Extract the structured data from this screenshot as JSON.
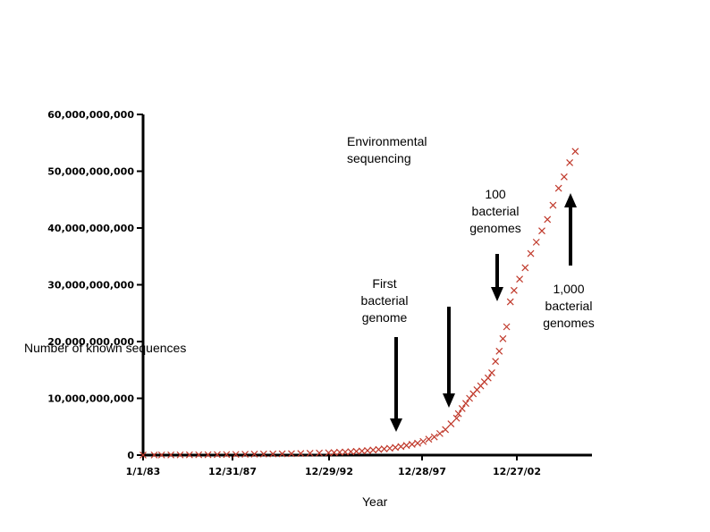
{
  "chart_data": {
    "type": "scatter",
    "xlabel": "Year",
    "ylabel": "Number of known sequences",
    "y_ticks": [
      "0",
      "10,000,000,000",
      "20,000,000,000",
      "30,000,000,000",
      "40,000,000,000",
      "50,000,000,000",
      "60,000,000,000"
    ],
    "x_ticks": [
      "1/1/83",
      "12/31/87",
      "12/29/92",
      "12/28/97",
      "12/27/02"
    ],
    "ylim": [
      0,
      60000000000
    ],
    "xlim": [
      1983.0,
      2007.2
    ],
    "marker": "x",
    "marker_color": "#c0392b",
    "annotations": [
      {
        "text": "Environmental\nsequencing"
      },
      {
        "text": "100\nbacterial\ngenomes"
      },
      {
        "text": "First\nbacterial\ngenome"
      },
      {
        "text": "1,000\nbacterial\ngenomes"
      }
    ],
    "series": [
      {
        "x": [
          1983.0,
          1983.6,
          1984.0,
          1984.5,
          1985.0,
          1985.5,
          1986.0,
          1986.5,
          1987.0,
          1987.5,
          1988.0,
          1988.5,
          1989.0,
          1989.5,
          1990.0,
          1990.5,
          1991.0,
          1991.5,
          1992.0,
          1992.5,
          1993.0,
          1993.3,
          1993.6,
          1993.9,
          1994.2,
          1994.5,
          1994.8,
          1995.1,
          1995.4,
          1995.7,
          1996.0,
          1996.3,
          1996.6,
          1996.9,
          1997.2,
          1997.5,
          1997.8,
          1998.1,
          1998.4,
          1998.7,
          1999.0,
          1999.3,
          1999.6,
          1999.9,
          2000.0,
          2000.2,
          2000.4,
          2000.6,
          2000.8,
          2001.0,
          2001.2,
          2001.4,
          2001.6,
          2001.8,
          2002.0,
          2002.2,
          2002.4,
          2002.6,
          2002.8,
          2003.0,
          2003.3,
          2003.6,
          2003.9,
          2004.2,
          2004.5,
          2004.8,
          2005.1,
          2005.4,
          2005.7,
          2006.0,
          2006.3
        ],
        "y": [
          10000000.0,
          20000000.0,
          20000000.0,
          30000000.0,
          40000000.0,
          50000000.0,
          60000000.0,
          70000000.0,
          90000000.0,
          100000000.0,
          120000000.0,
          140000000.0,
          160000000.0,
          180000000.0,
          200000000.0,
          220000000.0,
          250000000.0,
          280000000.0,
          320000000.0,
          360000000.0,
          400000000.0,
          450000000.0,
          500000000.0,
          550000000.0,
          600000000.0,
          660000000.0,
          720000000.0,
          800000000.0,
          900000000.0,
          1000000000.0,
          1100000000.0,
          1200000000.0,
          1350000000.0,
          1500000000.0,
          1700000000.0,
          1900000000.0,
          2100000000.0,
          2400000000.0,
          2800000000.0,
          3200000000.0,
          3800000000.0,
          4500000000.0,
          5500000000.0,
          6500000000.0,
          7300000000.0,
          8200000000.0,
          9100000000.0,
          10000000000.0,
          10800000000.0,
          11500000000.0,
          12200000000.0,
          12900000000.0,
          13600000000.0,
          14500000000.0,
          16500000000.0,
          18300000000.0,
          20500000000.0,
          22600000000.0,
          27000000000.0,
          29000000000.0,
          31000000000.0,
          33000000000.0,
          35500000000.0,
          37500000000.0,
          39500000000.0,
          41500000000.0,
          44000000000.0,
          47000000000.0,
          49000000000.0,
          51500000000.0,
          53500000000.0
        ]
      }
    ]
  }
}
